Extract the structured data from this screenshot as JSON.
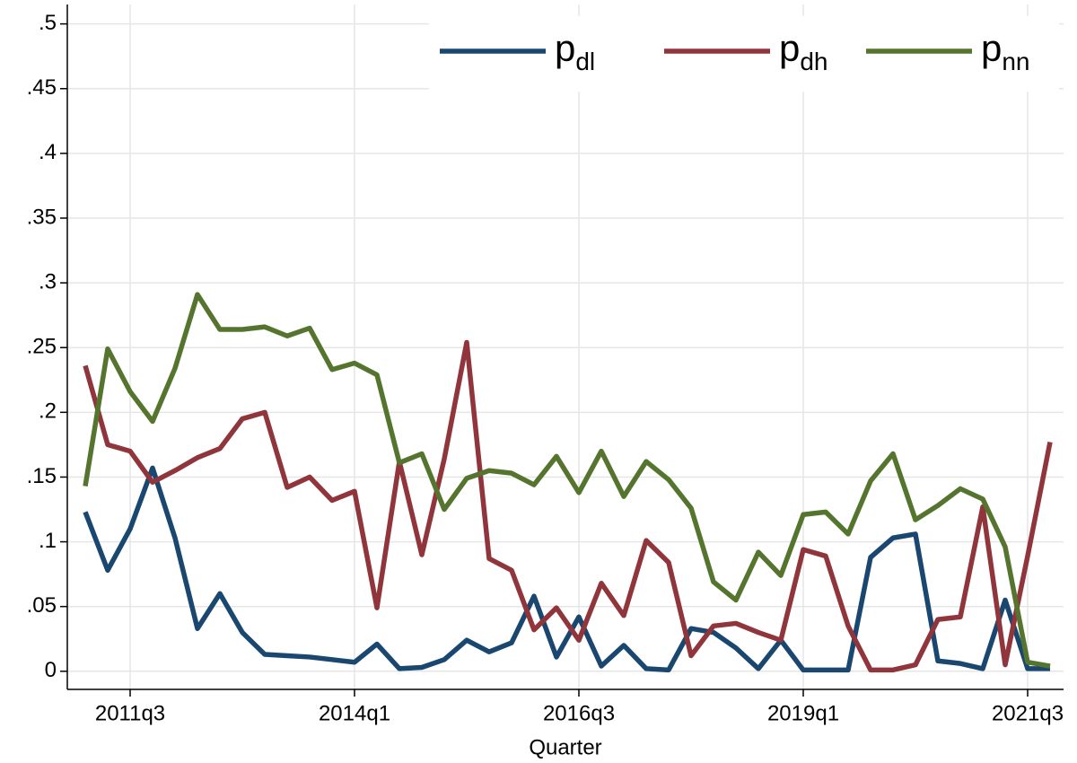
{
  "chart_data": {
    "type": "line",
    "x_label": "Quarter",
    "x": [
      204,
      205,
      206,
      207,
      208,
      209,
      210,
      211,
      212,
      213,
      214,
      215,
      216,
      217,
      218,
      219,
      220,
      221,
      222,
      223,
      224,
      225,
      226,
      227,
      228,
      229,
      230,
      231,
      232,
      233,
      234,
      235,
      236,
      237,
      238,
      239,
      240,
      241,
      242,
      243,
      244,
      245,
      246,
      247
    ],
    "series": [
      {
        "name": "p_dl",
        "color": "#1a476f",
        "values": [
          0.123,
          0.078,
          0.11,
          0.157,
          0.103,
          0.033,
          0.06,
          0.03,
          0.013,
          0.012,
          0.011,
          0.009,
          0.007,
          0.021,
          0.002,
          0.003,
          0.009,
          0.024,
          0.015,
          0.022,
          0.058,
          0.011,
          0.042,
          0.004,
          0.02,
          0.002,
          0.001,
          0.033,
          0.03,
          0.018,
          0.002,
          0.024,
          0.001,
          0.001,
          0.001,
          0.088,
          0.103,
          0.106,
          0.008,
          0.006,
          0.002,
          0.055,
          0.002,
          0.002
        ]
      },
      {
        "name": "p_dh",
        "color": "#90353b",
        "values": [
          0.236,
          0.175,
          0.17,
          0.146,
          0.155,
          0.165,
          0.172,
          0.195,
          0.2,
          0.142,
          0.15,
          0.132,
          0.139,
          0.049,
          0.162,
          0.09,
          0.164,
          0.254,
          0.087,
          0.078,
          0.032,
          0.049,
          0.024,
          0.068,
          0.043,
          0.101,
          0.084,
          0.012,
          0.035,
          0.037,
          0.03,
          0.024,
          0.094,
          0.089,
          0.035,
          0.001,
          0.001,
          0.005,
          0.04,
          0.042,
          0.127,
          0.005,
          0.089,
          0.177
        ]
      },
      {
        "name": "p_nn",
        "color": "#55752f",
        "values": [
          0.143,
          0.249,
          0.216,
          0.193,
          0.234,
          0.291,
          0.264,
          0.264,
          0.266,
          0.259,
          0.265,
          0.233,
          0.238,
          0.229,
          0.161,
          0.168,
          0.125,
          0.149,
          0.155,
          0.153,
          0.144,
          0.166,
          0.138,
          0.17,
          0.135,
          0.162,
          0.148,
          0.126,
          0.069,
          0.055,
          0.092,
          0.074,
          0.121,
          0.123,
          0.106,
          0.147,
          0.168,
          0.117,
          0.128,
          0.141,
          0.133,
          0.096,
          0.007,
          0.004
        ]
      }
    ],
    "xlim": [
      203.2,
      247.6
    ],
    "xticks": [
      {
        "value": 206,
        "label": "2011q3"
      },
      {
        "value": 216,
        "label": "2014q1"
      },
      {
        "value": 226,
        "label": "2016q3"
      },
      {
        "value": 236,
        "label": "2019q1"
      },
      {
        "value": 246,
        "label": "2021q3"
      }
    ],
    "ylim": [
      -0.014,
      0.515
    ],
    "yticks": [
      0,
      {
        "value": 0.05,
        "label": ".05"
      },
      {
        "value": 0.1,
        "label": ".1"
      },
      {
        "value": 0.15,
        "label": ".15"
      },
      {
        "value": 0.2,
        "label": ".2"
      },
      {
        "value": 0.25,
        "label": ".25"
      },
      {
        "value": 0.3,
        "label": ".3"
      },
      {
        "value": 0.35,
        "label": ".35"
      },
      {
        "value": 0.4,
        "label": ".4"
      },
      {
        "value": 0.45,
        "label": ".45"
      },
      {
        "value": 0.5,
        "label": ".5"
      }
    ],
    "grid": true,
    "legend": "top-right"
  }
}
